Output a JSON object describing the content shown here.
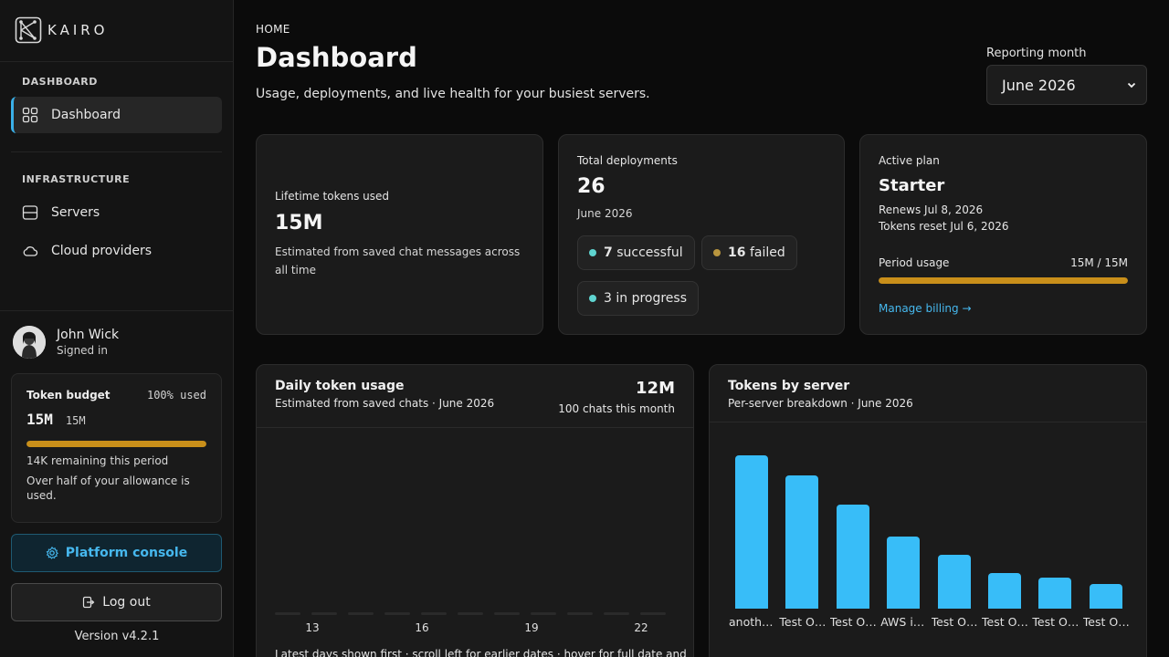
{
  "brand": {
    "name": "KAIRO"
  },
  "sidebar": {
    "section_dashboard": "DASHBOARD",
    "section_infra": "INFRASTRUCTURE",
    "items": [
      {
        "label": "Dashboard",
        "icon": "grid-icon"
      },
      {
        "label": "Servers",
        "icon": "server-icon"
      },
      {
        "label": "Cloud providers",
        "icon": "cloud-icon"
      }
    ],
    "user": {
      "name": "John Wick",
      "status": "Signed in"
    },
    "budget": {
      "title": "Token budget",
      "percent_label": "100% used",
      "used": "15M",
      "total": "15M",
      "fill_fraction": 0.999,
      "remaining": "14K remaining this period",
      "note": "Over half of your allowance is used."
    },
    "console_label": "Platform console",
    "logout_label": "Log out",
    "version": "Version v4.2.1"
  },
  "header": {
    "breadcrumb": "HOME",
    "title": "Dashboard",
    "subtitle": "Usage, deployments, and live health for your busiest servers.",
    "month_label": "Reporting month",
    "month_value": "June 2026"
  },
  "cards": {
    "tokens": {
      "label": "Lifetime tokens used",
      "value": "15M",
      "note": "Estimated from saved chat messages across all time"
    },
    "deployments": {
      "label": "Total deployments",
      "value": "26",
      "period": "June 2026",
      "successful_count": "7",
      "successful_label": "successful",
      "failed_count": "16",
      "failed_label": "failed",
      "in_progress": "3 in progress",
      "colors": {
        "success": "#5fd4d0",
        "failed": "#b8953e",
        "progress": "#5fd4d0"
      }
    },
    "plan": {
      "label": "Active plan",
      "name": "Starter",
      "renews": "Renews Jul 8, 2026",
      "reset": "Tokens reset Jul 6, 2026",
      "usage_label": "Period usage",
      "usage_value": "15M / 15M",
      "usage_fraction": 1.0,
      "billing_link": "Manage billing →"
    }
  },
  "daily_chart": {
    "title": "Daily token usage",
    "subtitle": "Estimated from saved chats · June 2026",
    "total": "12M",
    "chats": "100 chats this month",
    "ticks": [
      "13",
      "16",
      "19",
      "22"
    ],
    "footer": "Latest days shown first · scroll left for earlier dates · hover for full date and"
  },
  "server_chart": {
    "title": "Tokens by server",
    "subtitle": "Per-server breakdown · June 2026",
    "chart_data": {
      "type": "bar",
      "categories": [
        "anoth…",
        "Test O…",
        "Test O…",
        "AWS i…",
        "Test O…",
        "Test O…",
        "Test O…",
        "Test O…"
      ],
      "values": [
        100,
        87,
        68,
        47,
        35,
        23,
        20,
        16
      ],
      "ylim": [
        0,
        100
      ],
      "color": "#38bdf8"
    }
  }
}
